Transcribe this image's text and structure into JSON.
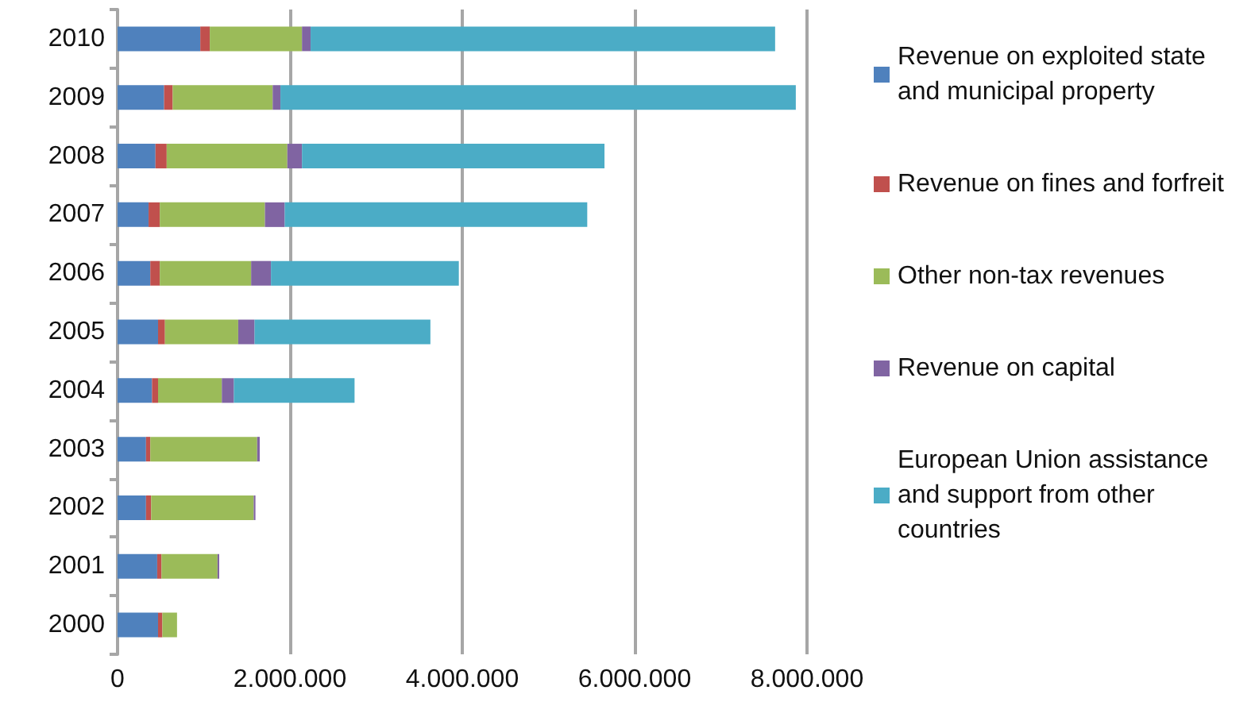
{
  "chart_data": {
    "type": "bar",
    "orientation": "horizontal",
    "stacked": true,
    "categories": [
      "2010",
      "2009",
      "2008",
      "2007",
      "2006",
      "2005",
      "2004",
      "2003",
      "2002",
      "2001",
      "2000"
    ],
    "series": [
      {
        "name": "Revenue on exploited state and municipal property",
        "color": "#4f81bd",
        "values": [
          960000,
          540000,
          440000,
          360000,
          380000,
          470000,
          400000,
          330000,
          330000,
          460000,
          470000
        ]
      },
      {
        "name": "Revenue on fines and forfreit",
        "color": "#c0504d",
        "values": [
          110000,
          100000,
          130000,
          130000,
          110000,
          80000,
          70000,
          50000,
          60000,
          50000,
          50000
        ]
      },
      {
        "name": "Other non-tax revenues",
        "color": "#9bbb59",
        "values": [
          1070000,
          1160000,
          1400000,
          1220000,
          1060000,
          850000,
          740000,
          1240000,
          1190000,
          650000,
          170000
        ]
      },
      {
        "name": "Revenue on capital",
        "color": "#8064a2",
        "values": [
          100000,
          90000,
          170000,
          230000,
          230000,
          190000,
          140000,
          30000,
          20000,
          20000,
          0
        ]
      },
      {
        "name": "European Union assistance and support from other countries",
        "color": "#4bacc6",
        "values": [
          5390000,
          5980000,
          3510000,
          3510000,
          2180000,
          2040000,
          1400000,
          0,
          0,
          0,
          0
        ]
      }
    ],
    "xlim": [
      0,
      8000000
    ],
    "xticks": [
      {
        "value": 0,
        "label": "0"
      },
      {
        "value": 2000000,
        "label": "2.000.000"
      },
      {
        "value": 4000000,
        "label": "4.000.000"
      },
      {
        "value": 6000000,
        "label": "6.000.000"
      },
      {
        "value": 8000000,
        "label": "8.000.000"
      }
    ],
    "grid": "x",
    "legend": "right"
  }
}
